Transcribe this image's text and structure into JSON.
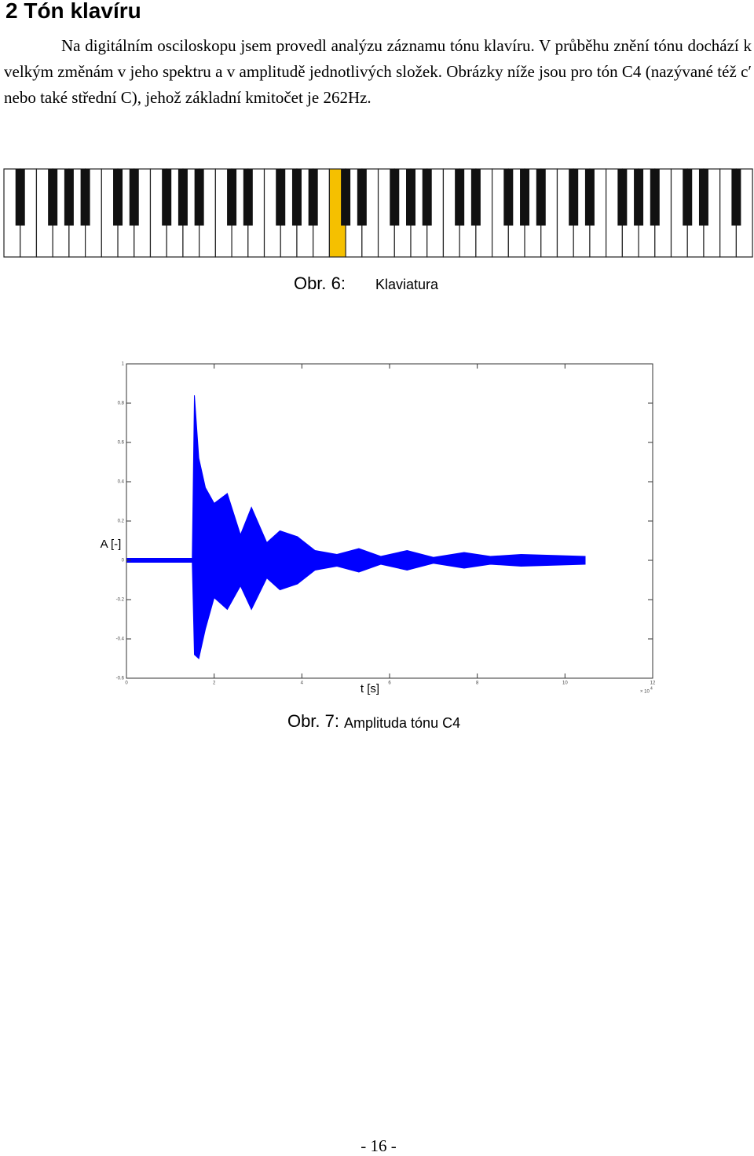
{
  "header": {
    "title": "2 Tón klavíru"
  },
  "paragraph": "Na digitálním osciloskopu jsem provedl analýzu záznamu tónu klavíru. V průběhu znění tónu dochází k velkým změnám v jeho spektru a v amplitudě jednotlivých složek. Obrázky níže jsou pro tón C4 (nazývané též c′ nebo také střední C), jehož základní kmitočet je 262Hz.",
  "figure6": {
    "label": "Obr. 6:",
    "caption": "Klaviatura"
  },
  "chart_data": {
    "type": "area",
    "ylabel": "A [-]",
    "xlabel": "t [s]",
    "x_scale_label": "× 10",
    "x_scale_exponent": "4",
    "x": [
      0,
      1.5,
      1.55,
      1.65,
      1.8,
      2.0,
      2.3,
      2.6,
      2.85,
      3.2,
      3.5,
      3.9,
      4.3,
      4.8,
      5.3,
      5.8,
      6.4,
      7.0,
      7.7,
      8.3,
      9.0,
      10.46
    ],
    "upper": [
      0.01,
      0.01,
      0.84,
      0.52,
      0.37,
      0.29,
      0.34,
      0.13,
      0.27,
      0.09,
      0.15,
      0.12,
      0.05,
      0.03,
      0.06,
      0.02,
      0.05,
      0.015,
      0.04,
      0.02,
      0.03,
      0.02
    ],
    "lower": [
      -0.01,
      -0.01,
      -0.48,
      -0.5,
      -0.35,
      -0.19,
      -0.25,
      -0.13,
      -0.25,
      -0.09,
      -0.15,
      -0.12,
      -0.05,
      -0.03,
      -0.06,
      -0.02,
      -0.05,
      -0.015,
      -0.04,
      -0.02,
      -0.03,
      -0.02
    ],
    "color": "#0000ff",
    "xlim": [
      0,
      12
    ],
    "ylim": [
      -0.6,
      1
    ],
    "xticks": [
      0,
      2,
      4,
      6,
      8,
      10,
      12
    ],
    "yticks": [
      1,
      0.8,
      0.6,
      0.4,
      0.2,
      0,
      -0.2,
      -0.4,
      -0.6
    ]
  },
  "figure7": {
    "label": "Obr. 7:",
    "caption": "Amplituda tónu C4"
  },
  "footer": {
    "page_number": "- 16 -"
  }
}
